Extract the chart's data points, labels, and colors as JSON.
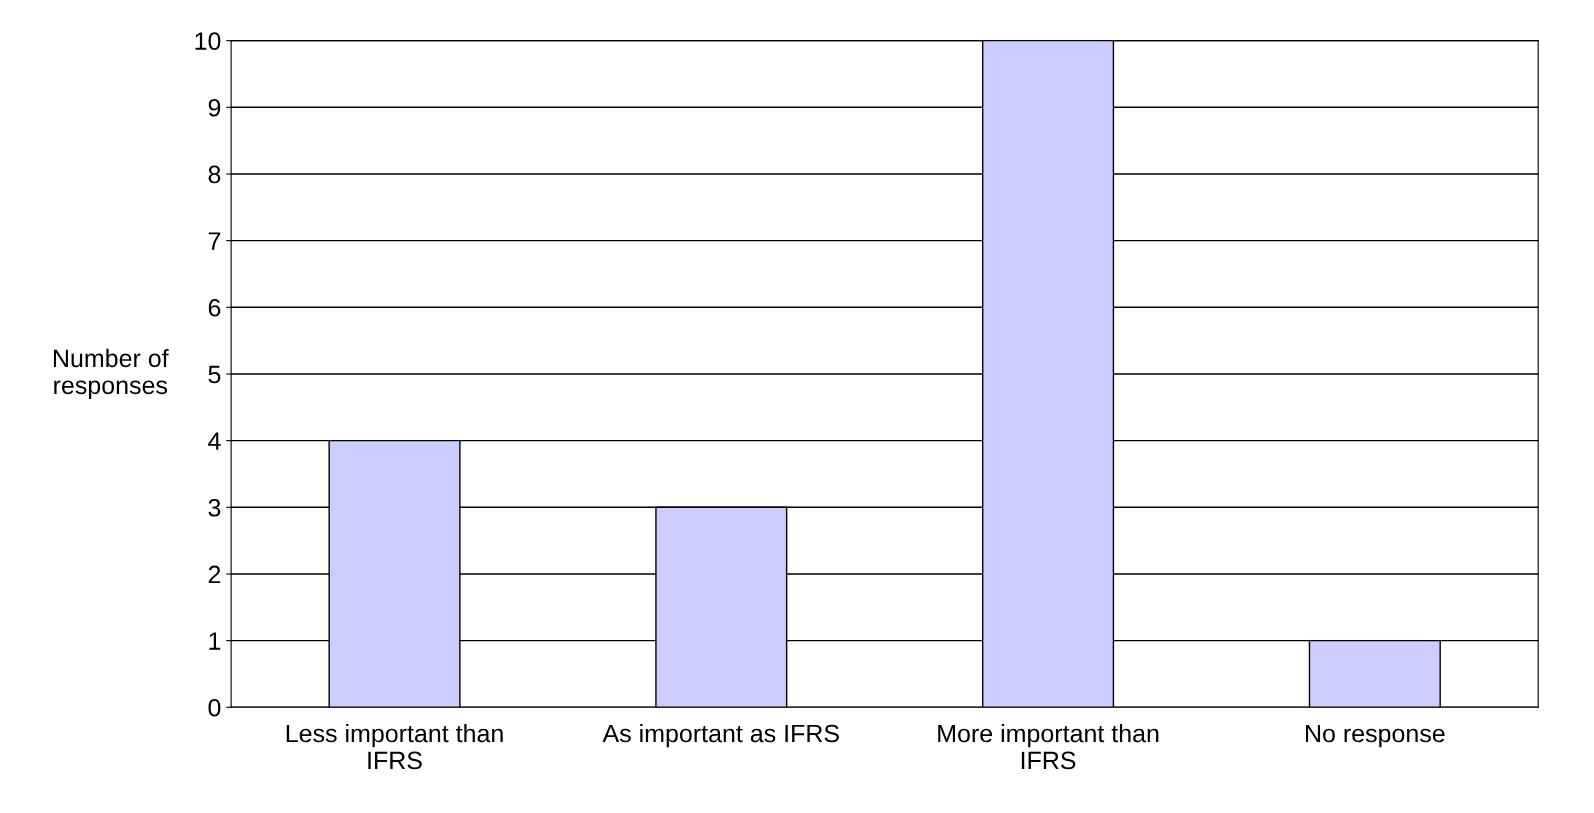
{
  "chart_data": {
    "type": "bar",
    "ylabel": "Number of\nresponses",
    "categories": [
      "Less important than\nIFRS",
      "As important as IFRS",
      "More important than\nIFRS",
      "No response"
    ],
    "values": [
      4,
      3,
      10,
      1
    ],
    "color": "#ccccff",
    "ylim": [
      0,
      10
    ],
    "yticks": [
      0,
      1,
      2,
      3,
      4,
      5,
      6,
      7,
      8,
      9,
      10
    ],
    "grid": "y"
  }
}
